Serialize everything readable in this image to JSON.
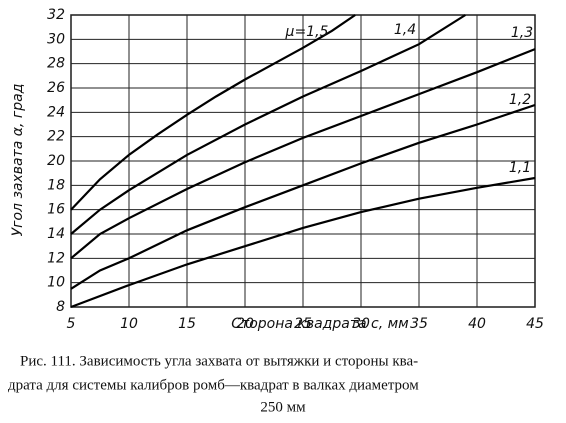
{
  "chart_data": {
    "type": "line",
    "xlabel": "Сторона квадрата c, мм",
    "ylabel": "Угол захвата α, град",
    "caption": [
      "Рис. 111. Зависимость угла захвата от вытяжки и стороны ква-",
      "драта для системы калибров ромб—квадрат в валках диаметром",
      "250 мм"
    ],
    "xlim": [
      5,
      45
    ],
    "xticks": [
      5,
      10,
      15,
      20,
      25,
      30,
      35,
      40,
      45
    ],
    "ylim": [
      8,
      32
    ],
    "yticks": [
      8,
      10,
      12,
      14,
      16,
      18,
      20,
      22,
      24,
      26,
      28,
      30,
      32
    ],
    "grid": true,
    "series": [
      {
        "name": "μ=1,5",
        "color": "#000000",
        "x": [
          5,
          7.5,
          10,
          12.5,
          15,
          17.5,
          20,
          22.5,
          25,
          27.5,
          29.5
        ],
        "values": [
          16,
          18.5,
          20.5,
          22.2,
          23.8,
          25.3,
          26.7,
          28,
          29.3,
          30.7,
          32
        ]
      },
      {
        "name": "1,4",
        "color": "#000000",
        "x": [
          5,
          7.5,
          10,
          15,
          20,
          25,
          30,
          35,
          39
        ],
        "values": [
          14,
          16,
          17.6,
          20.5,
          23,
          25.3,
          27.4,
          29.6,
          32
        ]
      },
      {
        "name": "1,3",
        "color": "#000000",
        "x": [
          5,
          7.5,
          10,
          15,
          20,
          25,
          30,
          35,
          40,
          45
        ],
        "values": [
          12,
          14,
          15.3,
          17.7,
          19.9,
          21.9,
          23.7,
          25.5,
          27.3,
          29.2
        ]
      },
      {
        "name": "1,2",
        "color": "#000000",
        "x": [
          5,
          7.5,
          10,
          15,
          20,
          25,
          30,
          35,
          40,
          45
        ],
        "values": [
          9.5,
          11,
          12,
          14.3,
          16.2,
          18,
          19.8,
          21.5,
          23,
          24.6
        ]
      },
      {
        "name": "1,1",
        "color": "#000000",
        "x": [
          5,
          10,
          15,
          20,
          25,
          30,
          35,
          40,
          45
        ],
        "values": [
          8,
          9.8,
          11.5,
          13,
          14.5,
          15.8,
          16.9,
          17.8,
          18.6
        ]
      }
    ]
  }
}
